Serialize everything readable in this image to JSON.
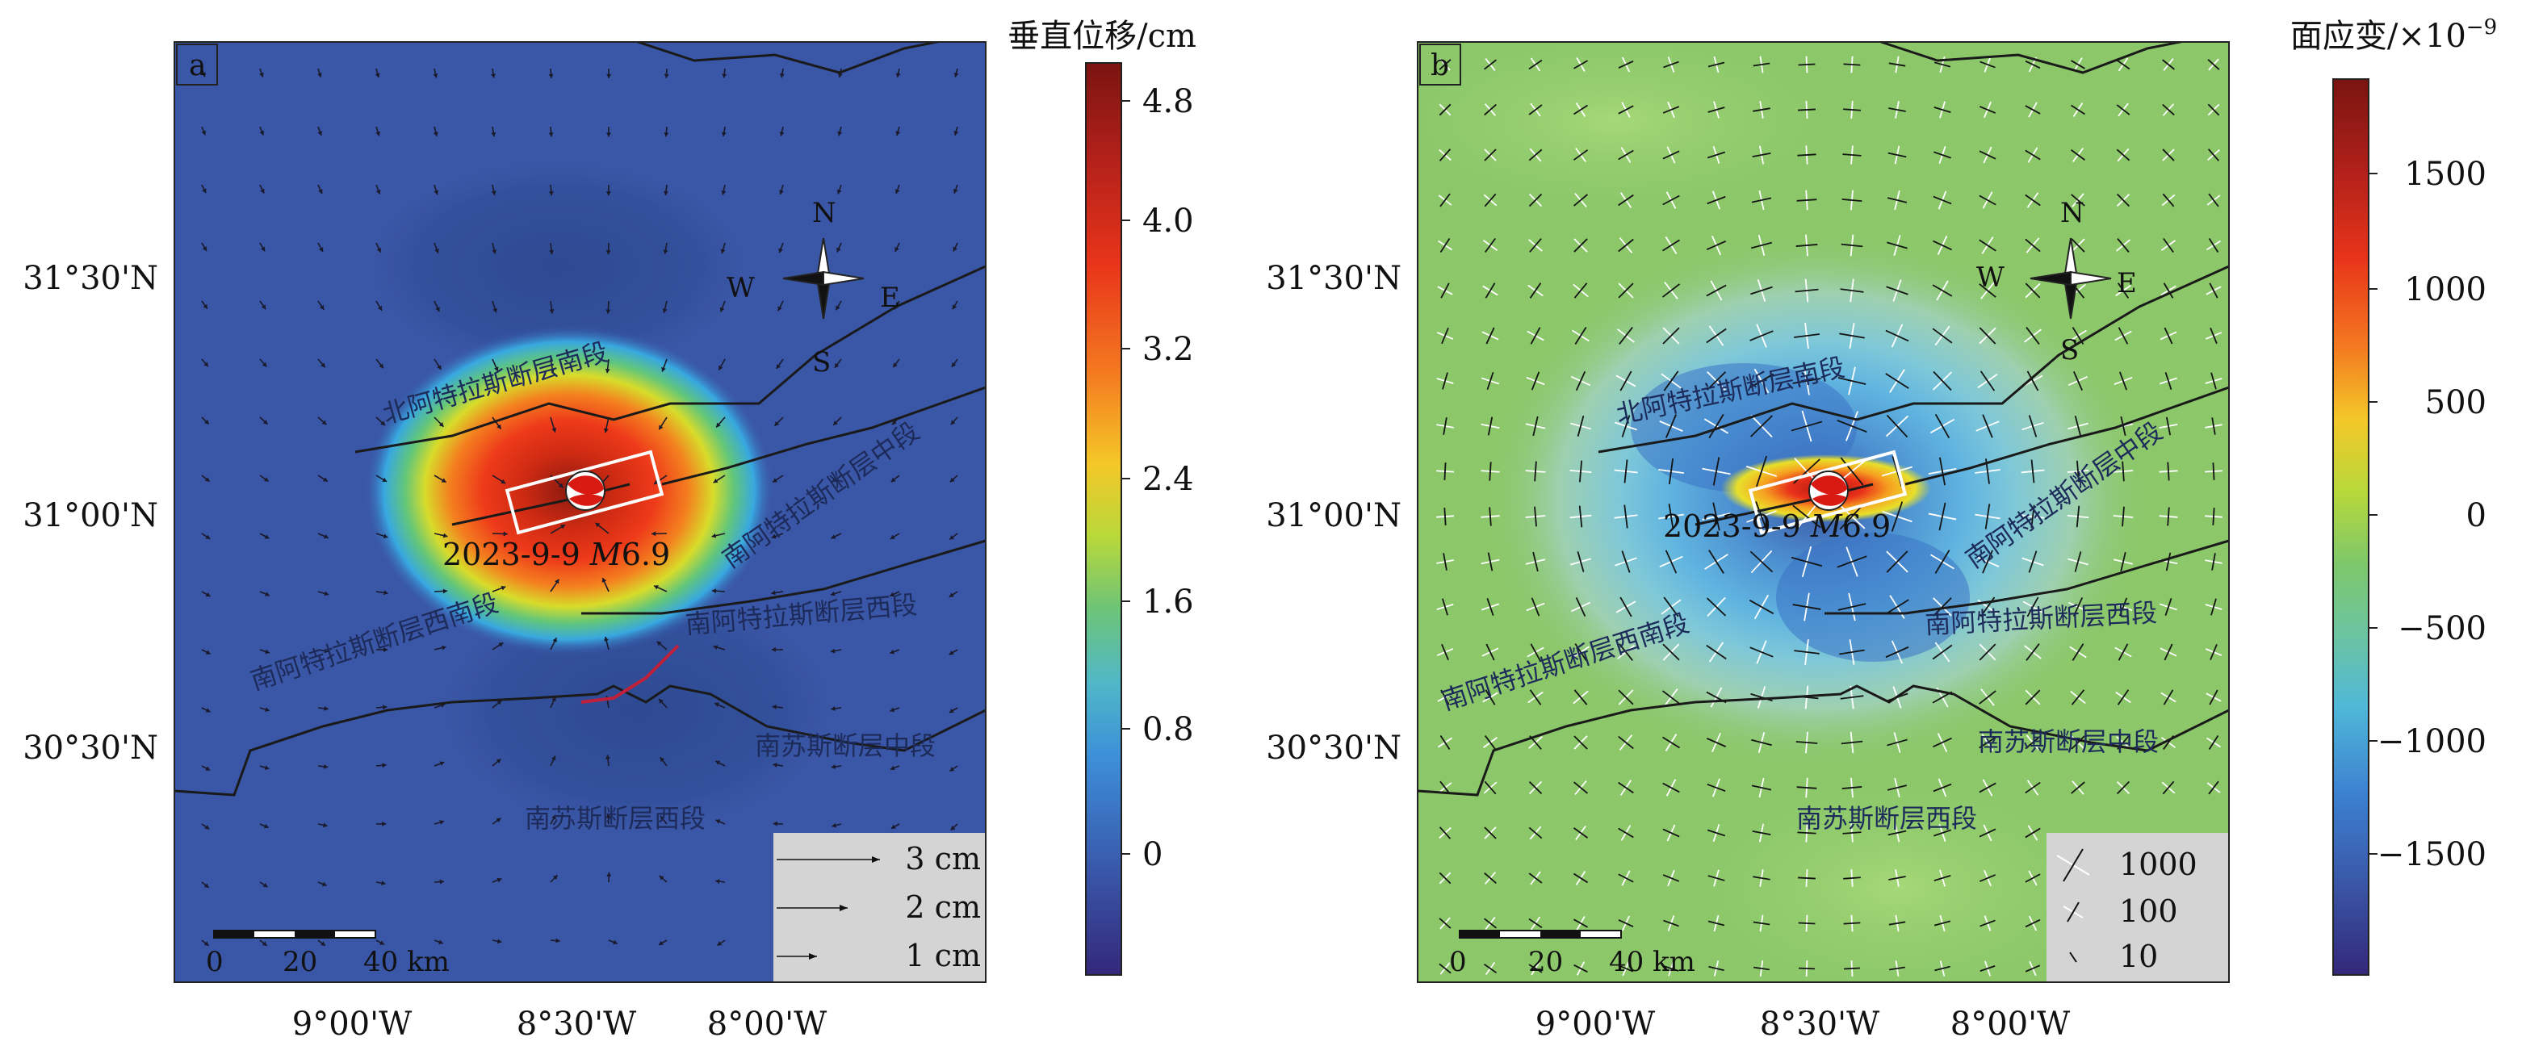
{
  "panels": [
    {
      "letter": "a",
      "colorbar": {
        "title": "垂直位移/cm",
        "ticks": [
          "4.8",
          "4.0",
          "3.2",
          "2.4",
          "1.6",
          "0.8",
          "0"
        ]
      },
      "lat_labels": [
        "31°30'N",
        "31°00'N",
        "30°30'N"
      ],
      "lon_labels": [
        "9°00'W",
        "8°30'W",
        "8°00'W"
      ],
      "compass": {
        "n": "N",
        "s": "S",
        "e": "E",
        "w": "W"
      },
      "scalebar": {
        "labels": [
          "0",
          "20",
          "40 km"
        ]
      },
      "event_label_prefix": "2023-9-9 ",
      "event_label_mag": "M",
      "event_label_value": "6.9",
      "fault_labels": [
        "北阿特拉斯断层南段",
        "南阿特拉斯断层中段",
        "南阿特拉斯断层西南段",
        "南阿特拉斯断层西段",
        "南苏斯断层中段",
        "南苏斯断层西段"
      ],
      "legend": [
        "3 cm",
        "2 cm",
        "1 cm"
      ]
    },
    {
      "letter": "b",
      "colorbar": {
        "title": "面应变/×10",
        "title_sup": "−9",
        "ticks": [
          "1500",
          "1000",
          "500",
          "0",
          "−500",
          "−1000",
          "−1500"
        ]
      },
      "lat_labels": [
        "31°30'N",
        "31°00'N",
        "30°30'N"
      ],
      "lon_labels": [
        "9°00'W",
        "8°30'W",
        "8°00'W"
      ],
      "compass": {
        "n": "N",
        "s": "S",
        "e": "E",
        "w": "W"
      },
      "scalebar": {
        "labels": [
          "0",
          "20",
          "40 km"
        ]
      },
      "event_label_prefix": "2023-9-9 ",
      "event_label_mag": "M",
      "event_label_value": "6.9",
      "fault_labels": [
        "北阿特拉斯断层南段",
        "南阿特拉斯断层中段",
        "南阿特拉斯断层西南段",
        "南阿特拉斯断层西段",
        "南苏斯断层中段",
        "南苏斯断层西段"
      ],
      "legend": [
        "1000",
        "100",
        "10"
      ]
    }
  ],
  "colors": {
    "background_a": "#3a56a6",
    "background_b": "#8cc86a",
    "fault": "#1a1a1a"
  }
}
